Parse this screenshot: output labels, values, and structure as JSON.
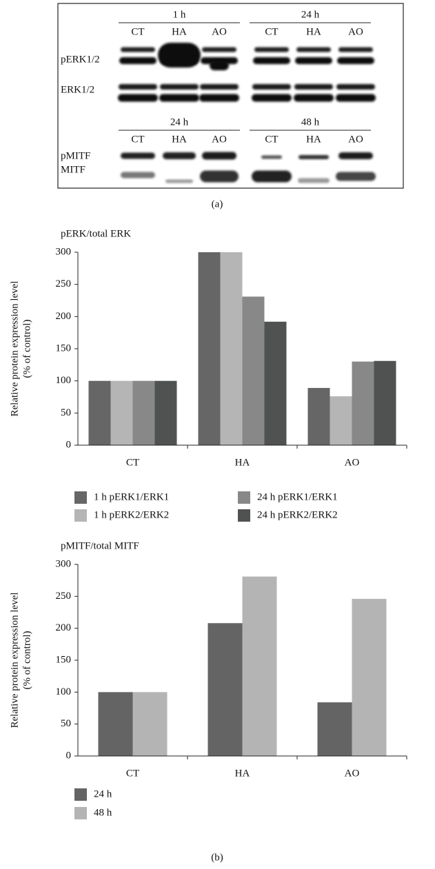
{
  "blot": {
    "panel1": {
      "times": [
        "1 h",
        "24 h"
      ],
      "lanes": [
        "CT",
        "HA",
        "AO",
        "CT",
        "HA",
        "AO"
      ],
      "rows": [
        "pERK1/2",
        "ERK1/2"
      ]
    },
    "panel2": {
      "times": [
        "24 h",
        "48 h"
      ],
      "lanes": [
        "CT",
        "HA",
        "AO",
        "CT",
        "HA",
        "AO"
      ],
      "rows": [
        "pMITF",
        "MITF"
      ]
    }
  },
  "panel_labels": [
    "(a)",
    "(b)"
  ],
  "chart_data": [
    {
      "type": "bar",
      "title": "pERK/total ERK",
      "ylabel": [
        "Relative protein expression level",
        "(% of control)"
      ],
      "categories": [
        "CT",
        "HA",
        "AO"
      ],
      "series": [
        {
          "name": "1 h pERK1/ERK1",
          "color": "#666666",
          "values": [
            100,
            300,
            89
          ]
        },
        {
          "name": "1 h pERK2/ERK2",
          "color": "#b5b5b5",
          "values": [
            100,
            300,
            76
          ]
        },
        {
          "name": "24 h pERK1/ERK1",
          "color": "#888888",
          "values": [
            100,
            231,
            130
          ]
        },
        {
          "name": "24 h pERK2/ERK2",
          "color": "#505252",
          "values": [
            100,
            192,
            131
          ]
        }
      ],
      "ylim": [
        0,
        300
      ],
      "yticks": [
        0,
        50,
        100,
        150,
        200,
        250,
        300
      ]
    },
    {
      "type": "bar",
      "title": "pMITF/total MITF",
      "ylabel": [
        "Relative protein expression level",
        "(% of control)"
      ],
      "categories": [
        "CT",
        "HA",
        "AO"
      ],
      "series": [
        {
          "name": "24 h",
          "color": "#646464",
          "values": [
            100,
            208,
            84
          ]
        },
        {
          "name": "48 h",
          "color": "#b4b4b4",
          "values": [
            100,
            281,
            246
          ]
        }
      ],
      "ylim": [
        0,
        300
      ],
      "yticks": [
        0,
        50,
        100,
        150,
        200,
        250,
        300
      ]
    }
  ]
}
